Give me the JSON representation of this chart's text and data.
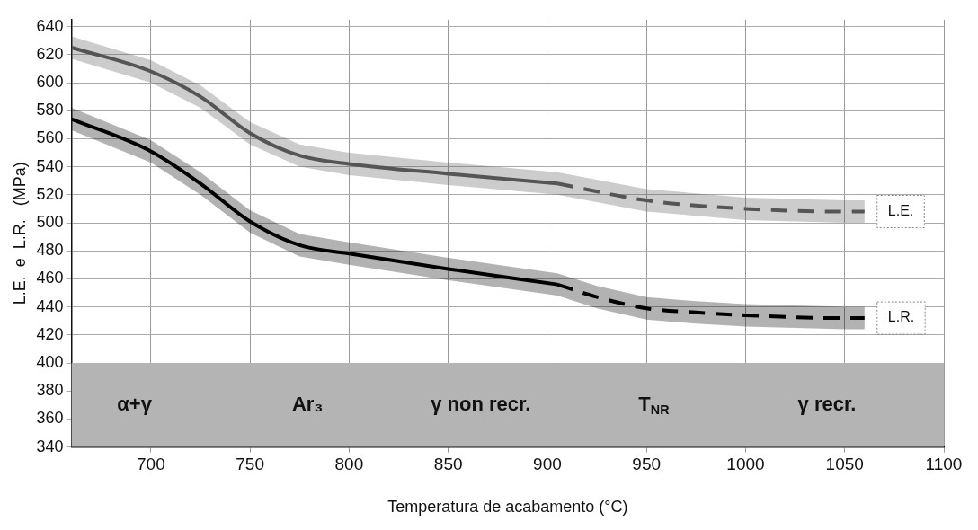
{
  "chart_data": {
    "type": "line",
    "xlabel": "Temperatura de acabamento (°C)",
    "ylabel": "L.E.  e  L.R.   (MPa)",
    "xlim": [
      660,
      1100
    ],
    "xticks": [
      700,
      750,
      800,
      850,
      900,
      950,
      1000,
      1050,
      1100
    ],
    "ylim": [
      340,
      645
    ],
    "yticks": [
      340,
      360,
      380,
      400,
      420,
      440,
      460,
      480,
      500,
      520,
      540,
      560,
      580,
      600,
      620,
      640
    ],
    "grid": true,
    "legend": false,
    "marker": "none",
    "series": [
      {
        "color": "#555555",
        "line_style": "solid",
        "x": [
          660,
          700,
          725,
          750,
          775,
          800,
          850,
          905
        ],
        "values": [
          625,
          608,
          590,
          564,
          548,
          542,
          535,
          528
        ],
        "lower": [
          617,
          600,
          582,
          556,
          540,
          534,
          527,
          520
        ],
        "upper": [
          633,
          616,
          598,
          572,
          556,
          550,
          543,
          536
        ]
      },
      {
        "name": "L.E.",
        "color": "#555555",
        "line_style": "dashed",
        "x": [
          905,
          950,
          1000,
          1050,
          1060
        ],
        "values": [
          528,
          516,
          510,
          508,
          508
        ],
        "lower": [
          520,
          508,
          502,
          500,
          500
        ],
        "upper": [
          536,
          524,
          518,
          516,
          516
        ]
      },
      {
        "color": "#000000",
        "line_style": "solid",
        "x": [
          660,
          700,
          725,
          750,
          775,
          800,
          850,
          905
        ],
        "values": [
          574,
          551,
          528,
          501,
          484,
          478,
          467,
          456
        ],
        "lower": [
          566,
          543,
          520,
          493,
          476,
          470,
          459,
          448
        ],
        "upper": [
          582,
          559,
          536,
          509,
          492,
          486,
          475,
          464
        ]
      },
      {
        "name": "L.R.",
        "color": "#000000",
        "line_style": "dashed",
        "x": [
          905,
          925,
          950,
          975,
          1000,
          1050,
          1060
        ],
        "values": [
          456,
          447,
          439,
          436,
          434,
          432,
          432
        ],
        "lower": [
          448,
          439,
          431,
          428,
          426,
          424,
          424
        ],
        "upper": [
          464,
          455,
          447,
          444,
          442,
          440,
          440
        ]
      }
    ],
    "bands": [
      {
        "axis": "y",
        "from": 340,
        "to": 400,
        "color": "#b4b4b4"
      }
    ],
    "annotations": [
      "α+γ",
      "Ar₃",
      "γ non recr.",
      "T$_{NR}$",
      "γ recr."
    ]
  }
}
